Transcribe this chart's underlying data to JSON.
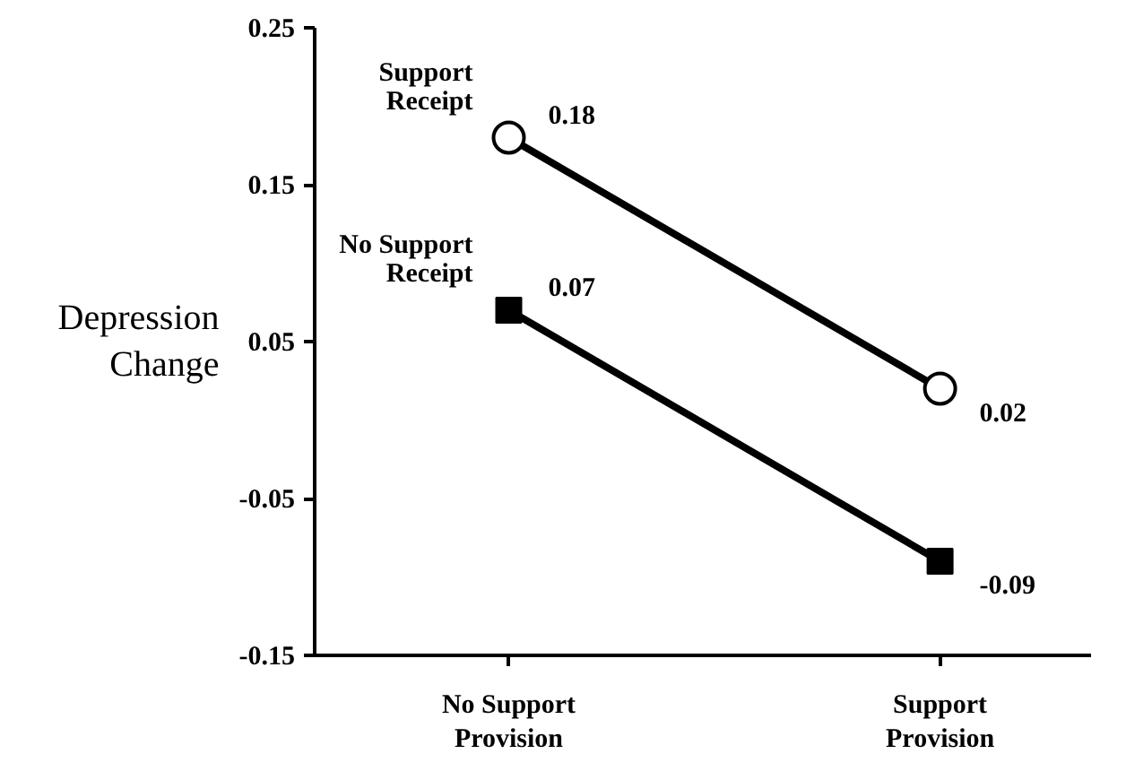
{
  "chart_data": {
    "type": "line",
    "ylabel": "Depression Change",
    "categories": [
      "No Support Provision",
      "Support Provision"
    ],
    "series": [
      {
        "name": "Support Receipt",
        "color": "#000000",
        "marker": "circle",
        "values": [
          0.18,
          0.02
        ]
      },
      {
        "name": "No Support Receipt",
        "color": "#000000",
        "marker": "square",
        "values": [
          0.07,
          -0.09
        ]
      }
    ],
    "ylim": [
      -0.15,
      0.25
    ],
    "yticks": [
      -0.15,
      -0.05,
      0.05,
      0.15,
      0.25
    ],
    "data_labels": true,
    "grid": false,
    "line_style": "solid"
  }
}
